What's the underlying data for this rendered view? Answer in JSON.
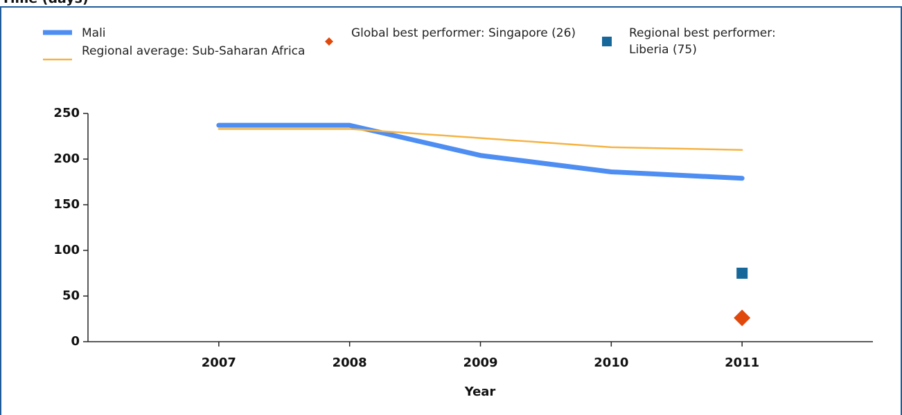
{
  "chart_data": {
    "type": "line",
    "title": "Time (days)",
    "xlabel": "Year",
    "xlim": [
      2006,
      2012
    ],
    "xticks": [
      2007,
      2008,
      2009,
      2010,
      2011
    ],
    "ylim": [
      0,
      250
    ],
    "yticks": [
      0,
      50,
      100,
      150,
      200,
      250
    ],
    "series": [
      {
        "name": "Mali",
        "color": "#4e8ef2",
        "x": [
          2007,
          2008,
          2009,
          2010,
          2011
        ],
        "values": [
          237,
          237,
          204,
          186,
          179
        ],
        "marker": "line",
        "width": 7
      },
      {
        "name": "Regional average: Sub-Saharan Africa",
        "color": "#f5b342",
        "x": [
          2007,
          2008,
          2009,
          2010,
          2011
        ],
        "values": [
          233,
          233,
          223,
          213,
          210
        ],
        "marker": "line",
        "width": 2.5
      },
      {
        "name": "Global best performer: Singapore (26)",
        "color": "#e0480c",
        "x": [
          2011
        ],
        "values": [
          26
        ],
        "marker": "diamond"
      },
      {
        "name": "Regional best performer: Liberia (75)",
        "color": "#17689a",
        "x": [
          2011
        ],
        "values": [
          75
        ],
        "marker": "square"
      }
    ]
  }
}
